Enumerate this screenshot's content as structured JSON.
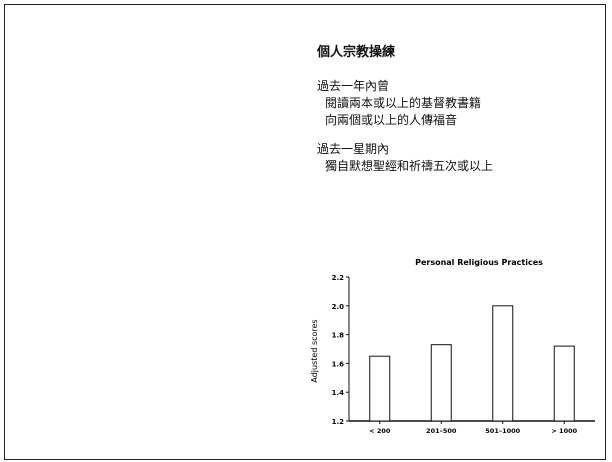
{
  "slide": {
    "title": "個人宗教操練",
    "sections": [
      {
        "heading": "過去一年內曾",
        "items": [
          "閱讀兩本或以上的基督教書籍",
          "向兩個或以上的人傳福音"
        ]
      },
      {
        "heading": "過去一星期內",
        "items": [
          "獨自默想聖經和祈禱五次或以上"
        ]
      }
    ]
  },
  "chart_data": {
    "type": "bar",
    "title": "Personal Religious Practices",
    "xlabel": "",
    "ylabel": "Adjusted scores",
    "categories": [
      "< 200",
      "201–500",
      "501–1000",
      "> 1000"
    ],
    "values": [
      1.65,
      1.73,
      2.0,
      1.72
    ],
    "ylim": [
      1.2,
      2.2
    ],
    "yticks": [
      "1.2",
      "1.4",
      "1.6",
      "1.8",
      "2.0",
      "2.2"
    ],
    "grid": false,
    "bar_fill": "#ffffff",
    "bar_stroke": "#111111"
  }
}
